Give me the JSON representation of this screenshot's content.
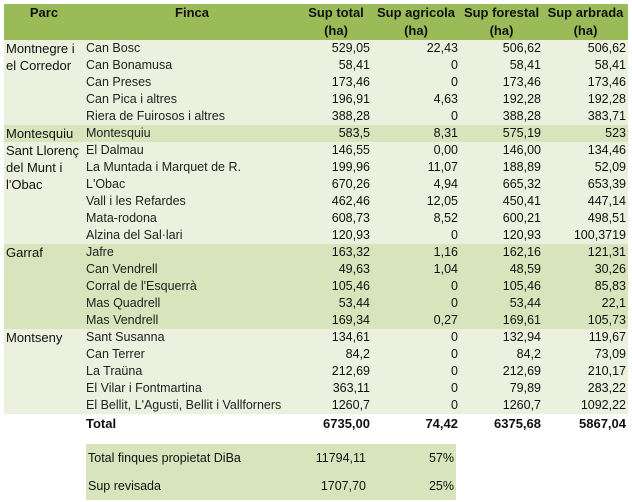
{
  "headers": {
    "parc": "Parc",
    "finca": "Finca",
    "total": "Sup total (ha)",
    "agricola": "Sup agricola (ha)",
    "forestal": "Sup forestal (ha)",
    "arbrada": "Sup arbrada (ha)"
  },
  "colors": {
    "header": "#9BBB59",
    "band_light": "#EBF1DE",
    "band_dark": "#D7E4BC"
  },
  "groups": [
    {
      "parc": "Montnegre i el Corredor",
      "shade": "l",
      "rows": [
        [
          "Can Bosc",
          "529,05",
          "22,43",
          "506,62",
          "506,62"
        ],
        [
          "Can Bonamusa",
          "58,41",
          "0",
          "58,41",
          "58,41"
        ],
        [
          "Can Preses",
          "173,46",
          "0",
          "173,46",
          "173,46"
        ],
        [
          "Can Pica i altres",
          "196,91",
          "4,63",
          "192,28",
          "192,28"
        ],
        [
          "Riera de Fuirosos i altres",
          "388,28",
          "0",
          "388,28",
          "383,71"
        ]
      ]
    },
    {
      "parc": "Montesquiu",
      "shade": "d",
      "rows": [
        [
          "Montesquiu",
          "583,5",
          "8,31",
          "575,19",
          "523"
        ]
      ]
    },
    {
      "parc": "Sant Llorenç del Munt i l'Obac",
      "shade": "l",
      "rows": [
        [
          "El Dalmau",
          "146,55",
          "0,00",
          "146,00",
          "134,46"
        ],
        [
          "La Muntada i Marquet de R.",
          "199,96",
          "11,07",
          "188,89",
          "52,09"
        ],
        [
          "L'Obac",
          "670,26",
          "4,94",
          "665,32",
          "653,39"
        ],
        [
          "Vall i les Refardes",
          "462,46",
          "12,05",
          "450,41",
          "447,14"
        ],
        [
          "Mata-rodona",
          "608,73",
          "8,52",
          "600,21",
          "498,51"
        ],
        [
          "Alzina del Sal·lari",
          "120,93",
          "0",
          "120,93",
          "100,3719"
        ]
      ]
    },
    {
      "parc": "Garraf",
      "shade": "d",
      "rows": [
        [
          "Jafre",
          "163,32",
          "1,16",
          "162,16",
          "121,31"
        ],
        [
          "Can Vendrell",
          "49,63",
          "1,04",
          "48,59",
          "30,26"
        ],
        [
          "Corral de l'Esquerrà",
          "105,46",
          "0",
          "105,46",
          "85,83"
        ],
        [
          "Mas Quadrell",
          "53,44",
          "0",
          "53,44",
          "22,1"
        ],
        [
          "Mas Vendrell",
          "169,34",
          "0,27",
          "169,61",
          "105,73"
        ]
      ]
    },
    {
      "parc": "Montseny",
      "shade": "l",
      "rows": [
        [
          "Sant Susanna",
          "134,61",
          "0",
          "132,94",
          "119,67"
        ],
        [
          "Can Terrer",
          "84,2",
          "0",
          "84,2",
          "73,09"
        ],
        [
          "La Traüna",
          "212,69",
          "0",
          "212,69",
          "210,17"
        ],
        [
          "El Vilar i Fontmartina",
          "363,11",
          "0",
          "79,89",
          "283,22"
        ],
        [
          "El Bellit, L'Agusti, Bellit i Vallforners",
          "1260,7",
          "0",
          "1260,7",
          "1092,22"
        ]
      ]
    }
  ],
  "total": {
    "label": "Total",
    "total": "6735,00",
    "agricola": "74,42",
    "forestal": "6375,68",
    "arbrada": "5867,04"
  },
  "summary": [
    {
      "label": "Total finques propietat DiBa",
      "value": "11794,11",
      "pct": "57%"
    },
    {
      "label": "Sup revisada",
      "value": "1707,70",
      "pct": "25%"
    }
  ]
}
